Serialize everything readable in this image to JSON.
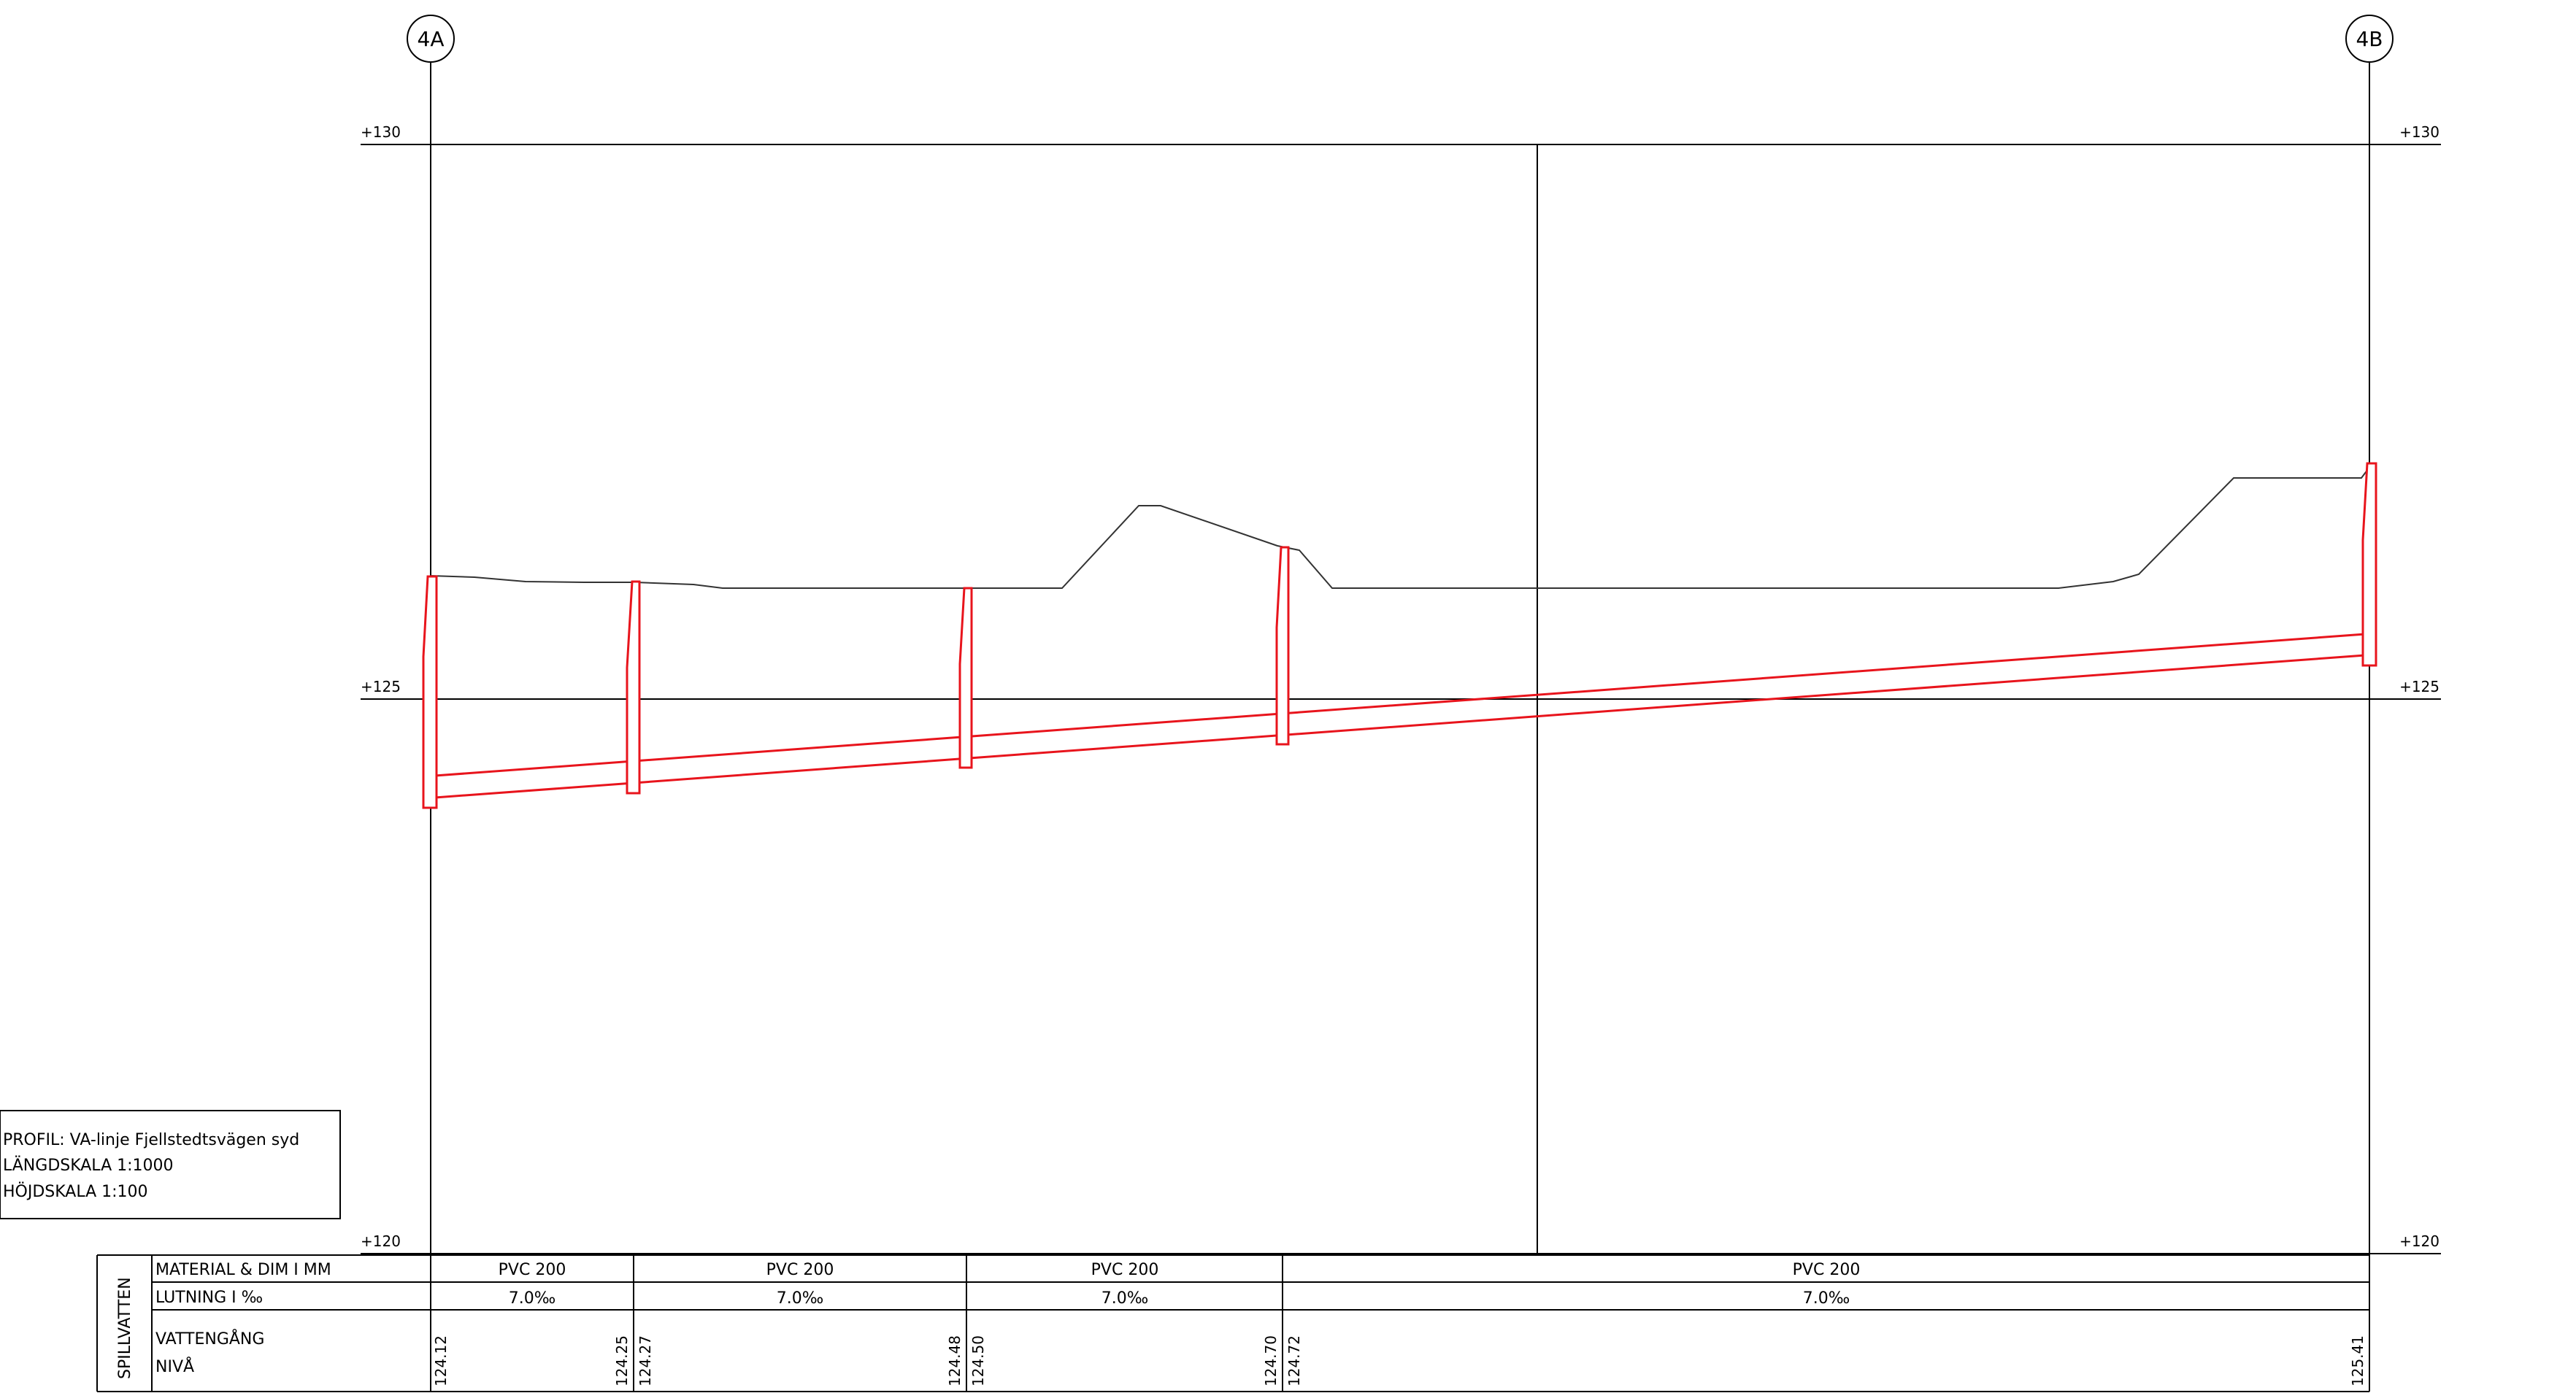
{
  "stations": [
    {
      "id": "4A"
    },
    {
      "id": "4B"
    }
  ],
  "elevation_labels": {
    "top": "+130",
    "mid": "+125",
    "bottom": "+120"
  },
  "title_block": {
    "line1": "PROFIL: VA-linje Fjellstedtsvägen syd",
    "line2": "LÄNGDSKALA 1:1000",
    "line3": "HÖJDSKALA 1:100"
  },
  "table": {
    "side_label": "SPILLVATTEN",
    "row_material_label": "MATERIAL & DIM I MM",
    "row_slope_label": "LUTNING I ‰",
    "row_invert_label_1": "VATTENGÅNG",
    "row_invert_label_2": "NIVÅ",
    "segments": [
      {
        "material": "PVC 200",
        "slope": "7.0‰",
        "invert_start": "124.12",
        "invert_end": "124.25"
      },
      {
        "material": "PVC 200",
        "slope": "7.0‰",
        "invert_start": "124.27",
        "invert_end": "124.48"
      },
      {
        "material": "PVC 200",
        "slope": "7.0‰",
        "invert_start": "124.50",
        "invert_end": "124.70"
      },
      {
        "material": "PVC 200",
        "slope": "7.0‰",
        "invert_start": "124.72",
        "invert_end": "125.41"
      }
    ]
  },
  "colors": {
    "pipe": "#e8141c",
    "line": "#000000",
    "ground": "#333333"
  }
}
